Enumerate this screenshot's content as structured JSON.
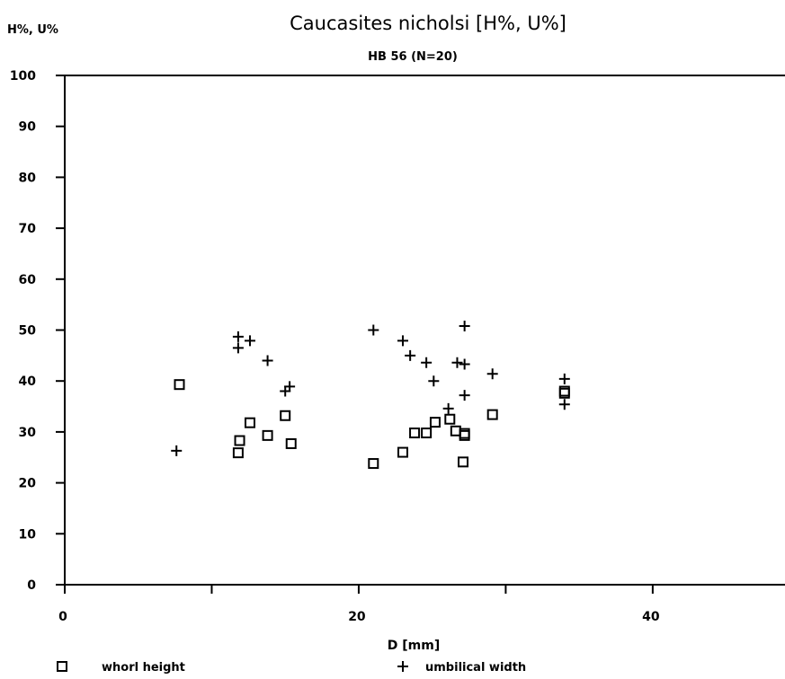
{
  "chart_data": {
    "type": "scatter",
    "title": "Caucasites nicholsi [H%, U%]",
    "subtitle": "HB 56 (N=20)",
    "ylabel": "H%, U%",
    "xlabel": "D [mm]",
    "xlim": [
      0,
      49
    ],
    "ylim": [
      0,
      100
    ],
    "xticks": [
      0,
      20,
      40
    ],
    "xminor_ticks": [
      10,
      30
    ],
    "yticks": [
      0,
      10,
      20,
      30,
      40,
      50,
      60,
      70,
      80,
      90,
      100
    ],
    "grid": false,
    "legend_position": "bottom",
    "series": [
      {
        "name": "whorl height",
        "marker": "square",
        "points": [
          [
            7.8,
            39.3
          ],
          [
            11.8,
            25.9
          ],
          [
            11.9,
            28.3
          ],
          [
            12.6,
            31.8
          ],
          [
            13.8,
            29.3
          ],
          [
            15.0,
            33.2
          ],
          [
            15.4,
            27.7
          ],
          [
            21.0,
            23.8
          ],
          [
            23.0,
            26.0
          ],
          [
            23.8,
            29.8
          ],
          [
            24.6,
            29.8
          ],
          [
            25.2,
            31.9
          ],
          [
            26.2,
            32.5
          ],
          [
            26.6,
            30.2
          ],
          [
            27.2,
            29.3
          ],
          [
            27.2,
            29.7
          ],
          [
            27.1,
            24.1
          ],
          [
            29.1,
            33.4
          ],
          [
            34.0,
            37.6
          ],
          [
            34.0,
            38.0
          ]
        ]
      },
      {
        "name": "umbilical width",
        "marker": "plus",
        "points": [
          [
            7.6,
            26.3
          ],
          [
            11.8,
            48.7
          ],
          [
            11.8,
            46.5
          ],
          [
            12.6,
            47.9
          ],
          [
            13.8,
            44.0
          ],
          [
            15.0,
            38.0
          ],
          [
            15.3,
            38.9
          ],
          [
            21.0,
            50.0
          ],
          [
            23.0,
            47.9
          ],
          [
            23.5,
            45.0
          ],
          [
            24.6,
            43.6
          ],
          [
            25.1,
            40.0
          ],
          [
            26.1,
            34.6
          ],
          [
            26.7,
            43.6
          ],
          [
            27.2,
            43.3
          ],
          [
            27.2,
            50.8
          ],
          [
            27.2,
            37.2
          ],
          [
            29.1,
            41.4
          ],
          [
            34.0,
            40.4
          ],
          [
            34.0,
            35.4
          ]
        ]
      }
    ]
  },
  "legend": {
    "whorl_label": "whorl height",
    "umbilical_label": "umbilical width"
  }
}
